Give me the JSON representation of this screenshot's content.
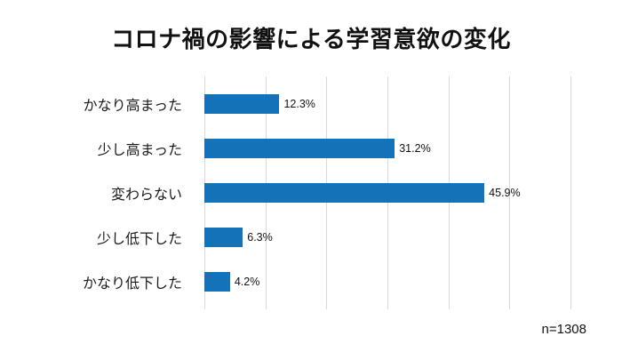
{
  "title": "コロナ禍の影響による学習意欲の変化",
  "footer": {
    "sample_size": "n=1308"
  },
  "colors": {
    "bar": "#1473b8",
    "gridline": "#d9d9d9",
    "text": "#1a1a1a"
  },
  "chart_data": {
    "type": "bar",
    "orientation": "horizontal",
    "title": "コロナ禍の影響による学習意欲の変化",
    "categories": [
      "かなり高まった",
      "少し高まった",
      "変わらない",
      "少し低下した",
      "かなり低下した"
    ],
    "values": [
      12.3,
      31.2,
      45.9,
      6.3,
      4.2
    ],
    "value_labels": [
      "12.3%",
      "31.2%",
      "45.9%",
      "6.3%",
      "4.2%"
    ],
    "xlabel": "",
    "ylabel": "",
    "xlim": [
      0,
      60
    ],
    "gridline_interval": 10,
    "grid": true,
    "legend": false,
    "annotation": "n=1308"
  }
}
